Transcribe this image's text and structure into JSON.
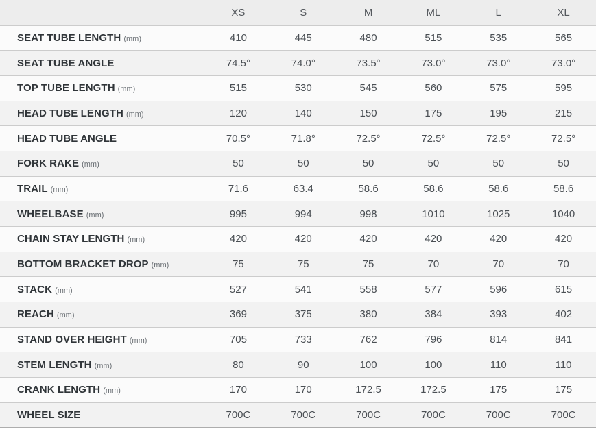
{
  "table": {
    "name": "bike-geometry-table",
    "columns": [
      "XS",
      "S",
      "M",
      "ML",
      "L",
      "XL"
    ],
    "rows": [
      {
        "label": "SEAT TUBE LENGTH",
        "unit": "(mm)",
        "values": [
          "410",
          "445",
          "480",
          "515",
          "535",
          "565"
        ]
      },
      {
        "label": "SEAT TUBE ANGLE",
        "unit": "",
        "values": [
          "74.5°",
          "74.0°",
          "73.5°",
          "73.0°",
          "73.0°",
          "73.0°"
        ]
      },
      {
        "label": "TOP TUBE LENGTH",
        "unit": "(mm)",
        "values": [
          "515",
          "530",
          "545",
          "560",
          "575",
          "595"
        ]
      },
      {
        "label": "HEAD TUBE LENGTH",
        "unit": "(mm)",
        "values": [
          "120",
          "140",
          "150",
          "175",
          "195",
          "215"
        ]
      },
      {
        "label": "HEAD TUBE ANGLE",
        "unit": "",
        "values": [
          "70.5°",
          "71.8°",
          "72.5°",
          "72.5°",
          "72.5°",
          "72.5°"
        ]
      },
      {
        "label": "FORK RAKE",
        "unit": "(mm)",
        "values": [
          "50",
          "50",
          "50",
          "50",
          "50",
          "50"
        ]
      },
      {
        "label": "TRAIL",
        "unit": "(mm)",
        "values": [
          "71.6",
          "63.4",
          "58.6",
          "58.6",
          "58.6",
          "58.6"
        ]
      },
      {
        "label": "WHEELBASE",
        "unit": "(mm)",
        "values": [
          "995",
          "994",
          "998",
          "1010",
          "1025",
          "1040"
        ]
      },
      {
        "label": "CHAIN STAY LENGTH",
        "unit": "(mm)",
        "values": [
          "420",
          "420",
          "420",
          "420",
          "420",
          "420"
        ]
      },
      {
        "label": "BOTTOM BRACKET DROP",
        "unit": "(mm)",
        "values": [
          "75",
          "75",
          "75",
          "70",
          "70",
          "70"
        ]
      },
      {
        "label": "STACK",
        "unit": "(mm)",
        "values": [
          "527",
          "541",
          "558",
          "577",
          "596",
          "615"
        ]
      },
      {
        "label": "REACH",
        "unit": "(mm)",
        "values": [
          "369",
          "375",
          "380",
          "384",
          "393",
          "402"
        ]
      },
      {
        "label": "STAND OVER HEIGHT",
        "unit": "(mm)",
        "values": [
          "705",
          "733",
          "762",
          "796",
          "814",
          "841"
        ]
      },
      {
        "label": "STEM LENGTH",
        "unit": "(mm)",
        "values": [
          "80",
          "90",
          "100",
          "100",
          "110",
          "110"
        ]
      },
      {
        "label": "CRANK LENGTH",
        "unit": "(mm)",
        "values": [
          "170",
          "170",
          "172.5",
          "172.5",
          "175",
          "175"
        ]
      },
      {
        "label": "WHEEL SIZE",
        "unit": "",
        "values": [
          "700C",
          "700C",
          "700C",
          "700C",
          "700C",
          "700C"
        ]
      }
    ],
    "colors": {
      "header_bg": "#ededed",
      "row_odd_bg": "#fbfbfb",
      "row_even_bg": "#f2f2f2",
      "row_border": "#cccccc",
      "bottom_border": "#adadad",
      "label_text": "#303539",
      "value_text": "#4a4f54",
      "header_text": "#55595e",
      "unit_text": "#6b7075"
    }
  }
}
